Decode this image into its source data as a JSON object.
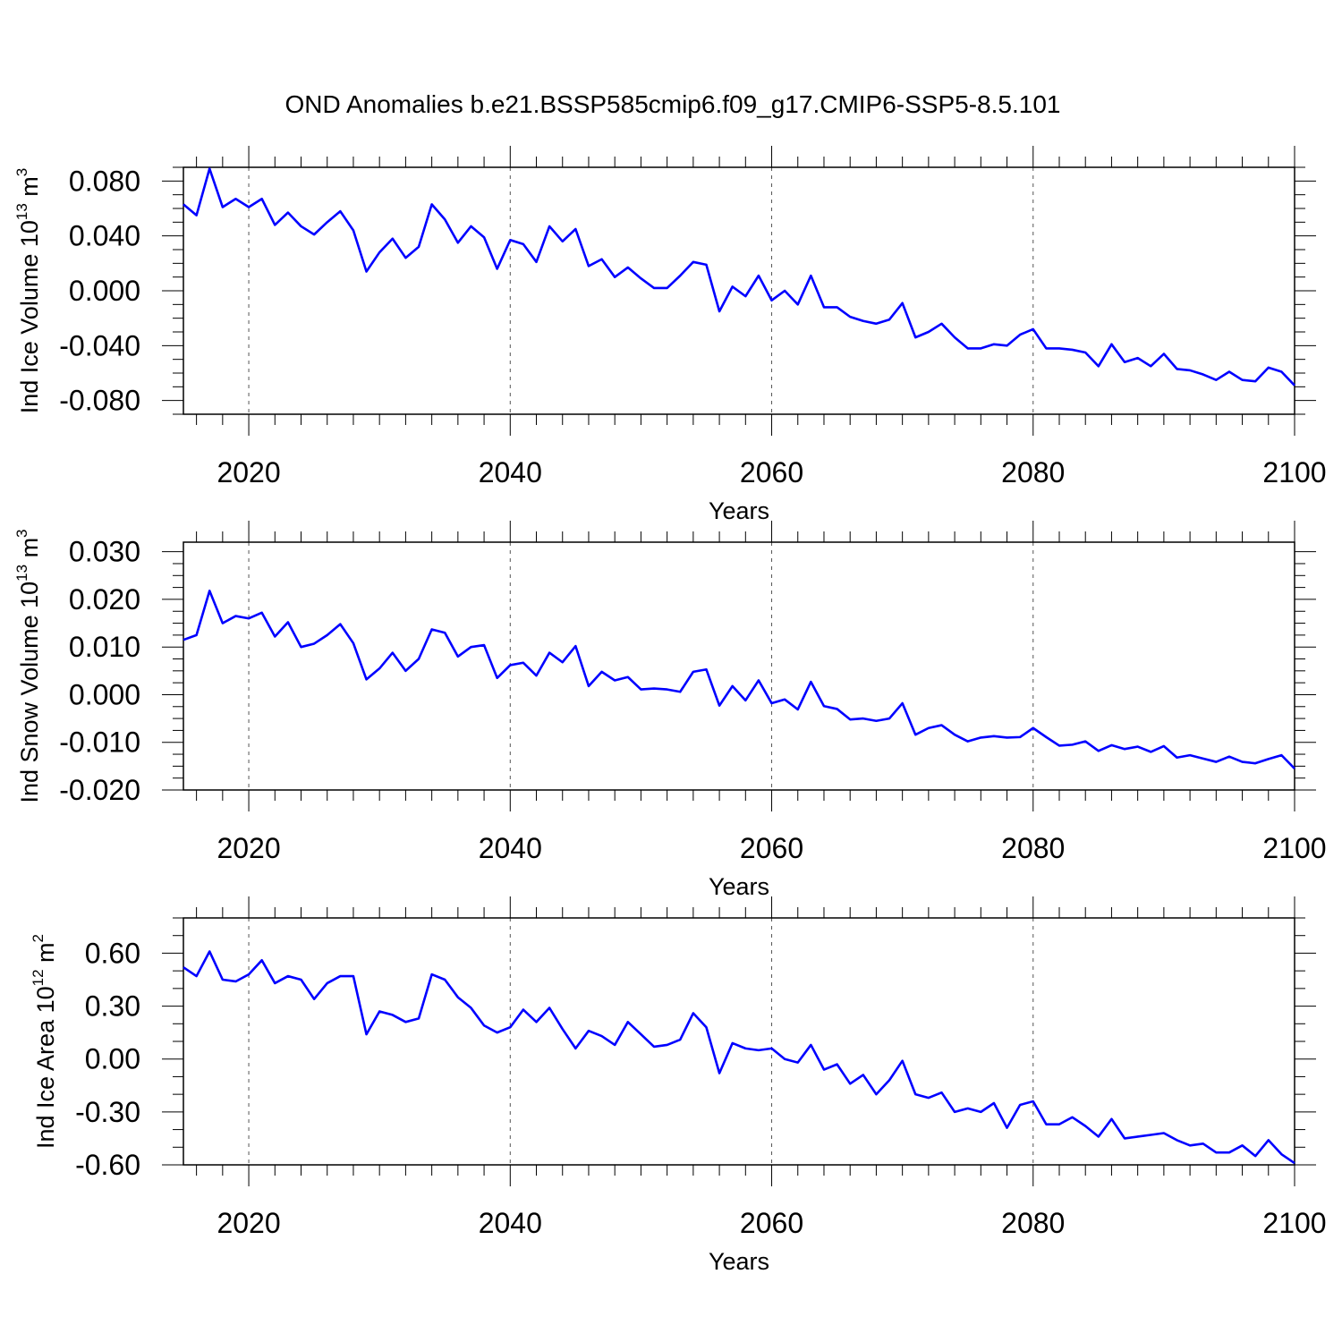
{
  "title": "OND Anomalies b.e21.BSSP585cmip6.f09_g17.CMIP6-SSP5-8.5.101",
  "colors": {
    "series": "#0000ff",
    "axis": "#000000",
    "grid": "#555555"
  },
  "chart_data": [
    {
      "type": "line",
      "ylabel": {
        "main": "Ind Ice Volume 10",
        "sup1": "13",
        "mid": " m",
        "sup2": "3"
      },
      "xlabel": "Years",
      "xlim": [
        2015,
        2100
      ],
      "ylim": [
        -0.09,
        0.09
      ],
      "yticks": [
        -0.08,
        -0.04,
        0.0,
        0.04,
        0.08
      ],
      "ytick_labels": [
        "-0.080",
        "-0.040",
        "0.000",
        "0.040",
        "0.080"
      ],
      "yminor_step": 0.01,
      "xticks": [
        2020,
        2040,
        2060,
        2080,
        2100
      ],
      "xtick_labels": [
        "2020",
        "2040",
        "2060",
        "2080",
        "2100"
      ],
      "grid": "vertical dashed at major x ticks",
      "series": [
        {
          "x_start": 2015,
          "values": [
            0.063,
            0.055,
            0.089,
            0.061,
            0.067,
            0.061,
            0.067,
            0.048,
            0.057,
            0.047,
            0.041,
            0.05,
            0.058,
            0.044,
            0.014,
            0.028,
            0.038,
            0.024,
            0.032,
            0.063,
            0.052,
            0.035,
            0.047,
            0.039,
            0.016,
            0.037,
            0.034,
            0.021,
            0.047,
            0.036,
            0.045,
            0.018,
            0.023,
            0.01,
            0.017,
            0.009,
            0.002,
            0.002,
            0.011,
            0.021,
            0.019,
            -0.015,
            0.003,
            -0.004,
            0.011,
            -0.007,
            0.0,
            -0.01,
            0.011,
            -0.012,
            -0.012,
            -0.019,
            -0.022,
            -0.024,
            -0.021,
            -0.009,
            -0.034,
            -0.03,
            -0.024,
            -0.034,
            -0.042,
            -0.042,
            -0.039,
            -0.04,
            -0.032,
            -0.028,
            -0.042,
            -0.042,
            -0.043,
            -0.045,
            -0.055,
            -0.039,
            -0.052,
            -0.049,
            -0.055,
            -0.046,
            -0.057,
            -0.058,
            -0.061,
            -0.065,
            -0.059,
            -0.065,
            -0.066,
            -0.056,
            -0.059,
            -0.069
          ]
        }
      ]
    },
    {
      "type": "line",
      "ylabel": {
        "main": "Ind Snow Volume 10",
        "sup1": "13",
        "mid": " m",
        "sup2": "3"
      },
      "xlabel": "Years",
      "xlim": [
        2015,
        2100
      ],
      "ylim": [
        -0.02,
        0.032
      ],
      "yticks": [
        -0.02,
        -0.01,
        0.0,
        0.01,
        0.02,
        0.03
      ],
      "ytick_labels": [
        "-0.020",
        "-0.010",
        "0.000",
        "0.010",
        "0.020",
        "0.030"
      ],
      "yminor_step": 0.0025,
      "xticks": [
        2020,
        2040,
        2060,
        2080,
        2100
      ],
      "xtick_labels": [
        "2020",
        "2040",
        "2060",
        "2080",
        "2100"
      ],
      "grid": "vertical dashed at major x ticks",
      "series": [
        {
          "x_start": 2015,
          "values": [
            0.0115,
            0.0125,
            0.0218,
            0.015,
            0.0165,
            0.016,
            0.0172,
            0.0122,
            0.0152,
            0.01,
            0.0107,
            0.0125,
            0.0148,
            0.0108,
            0.0032,
            0.0055,
            0.0088,
            0.005,
            0.0075,
            0.0137,
            0.013,
            0.008,
            0.01,
            0.0104,
            0.0035,
            0.0062,
            0.0067,
            0.004,
            0.0088,
            0.0068,
            0.0102,
            0.0018,
            0.0048,
            0.003,
            0.0037,
            0.0011,
            0.0013,
            0.0011,
            0.0006,
            0.0048,
            0.0053,
            -0.0023,
            0.0018,
            -0.0012,
            0.003,
            -0.0018,
            -0.001,
            -0.0031,
            0.0027,
            -0.0024,
            -0.003,
            -0.0052,
            -0.005,
            -0.0055,
            -0.005,
            -0.0018,
            -0.0084,
            -0.007,
            -0.0064,
            -0.0084,
            -0.0098,
            -0.009,
            -0.0087,
            -0.009,
            -0.0089,
            -0.007,
            -0.0089,
            -0.0107,
            -0.0105,
            -0.0098,
            -0.0118,
            -0.0106,
            -0.0114,
            -0.0109,
            -0.012,
            -0.0108,
            -0.0132,
            -0.0127,
            -0.0134,
            -0.0141,
            -0.013,
            -0.0141,
            -0.0144,
            -0.0135,
            -0.0127,
            -0.0155
          ]
        }
      ]
    },
    {
      "type": "line",
      "ylabel": {
        "main": "Ind Ice Area 10",
        "sup1": "12",
        "mid": " m",
        "sup2": "2"
      },
      "xlabel": "Years",
      "xlim": [
        2015,
        2100
      ],
      "ylim": [
        -0.6,
        0.8
      ],
      "yticks": [
        -0.6,
        -0.3,
        0.0,
        0.3,
        0.6
      ],
      "ytick_labels": [
        "-0.60",
        "-0.30",
        "0.00",
        "0.30",
        "0.60"
      ],
      "yminor_step": 0.1,
      "xticks": [
        2020,
        2040,
        2060,
        2080,
        2100
      ],
      "xtick_labels": [
        "2020",
        "2040",
        "2060",
        "2080",
        "2100"
      ],
      "grid": "vertical dashed at major x ticks",
      "series": [
        {
          "x_start": 2015,
          "values": [
            0.52,
            0.47,
            0.61,
            0.45,
            0.44,
            0.48,
            0.56,
            0.43,
            0.47,
            0.45,
            0.34,
            0.43,
            0.47,
            0.47,
            0.14,
            0.27,
            0.25,
            0.21,
            0.23,
            0.48,
            0.45,
            0.35,
            0.29,
            0.19,
            0.15,
            0.18,
            0.28,
            0.21,
            0.29,
            0.17,
            0.06,
            0.16,
            0.13,
            0.08,
            0.21,
            0.14,
            0.07,
            0.08,
            0.11,
            0.26,
            0.18,
            -0.08,
            0.09,
            0.06,
            0.05,
            0.06,
            0.0,
            -0.02,
            0.08,
            -0.06,
            -0.03,
            -0.14,
            -0.09,
            -0.2,
            -0.12,
            -0.01,
            -0.2,
            -0.22,
            -0.19,
            -0.3,
            -0.28,
            -0.3,
            -0.25,
            -0.39,
            -0.26,
            -0.24,
            -0.37,
            -0.37,
            -0.33,
            -0.38,
            -0.44,
            -0.34,
            -0.45,
            -0.44,
            -0.43,
            -0.42,
            -0.46,
            -0.49,
            -0.48,
            -0.53,
            -0.53,
            -0.49,
            -0.55,
            -0.46,
            -0.54,
            -0.59
          ]
        }
      ]
    }
  ]
}
